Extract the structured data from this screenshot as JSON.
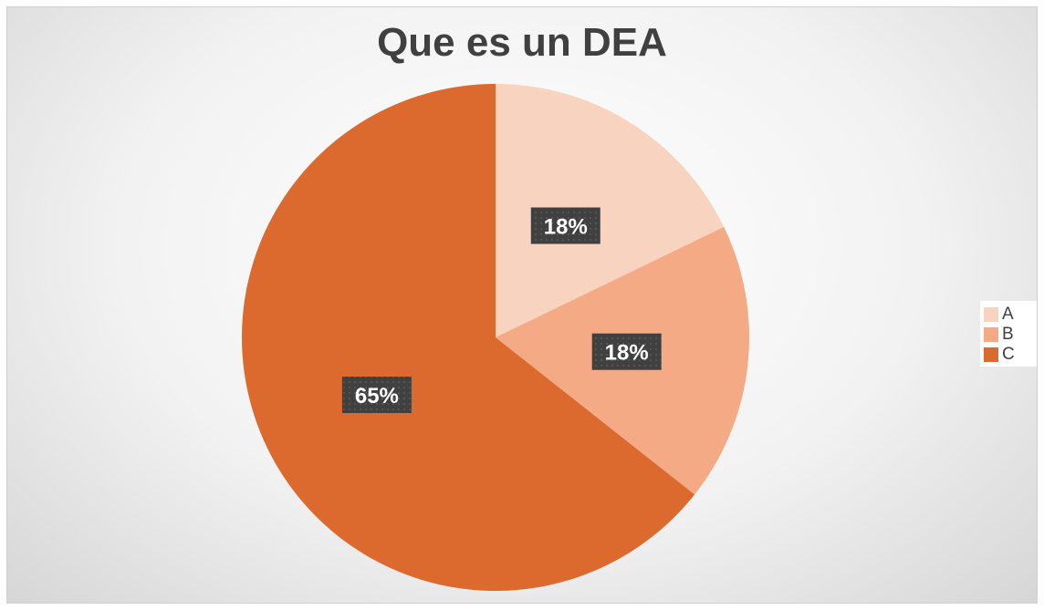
{
  "chart_data": {
    "type": "pie",
    "title": "Que es un DEA",
    "categories": [
      "A",
      "B",
      "C"
    ],
    "values": [
      18,
      18,
      65
    ],
    "value_labels": [
      "18%",
      "18%",
      "65%"
    ],
    "colors": [
      "#F8D3BF",
      "#F3AA85",
      "#DC6A2F"
    ],
    "label_box_color": "#404040",
    "legend_position": "right"
  }
}
